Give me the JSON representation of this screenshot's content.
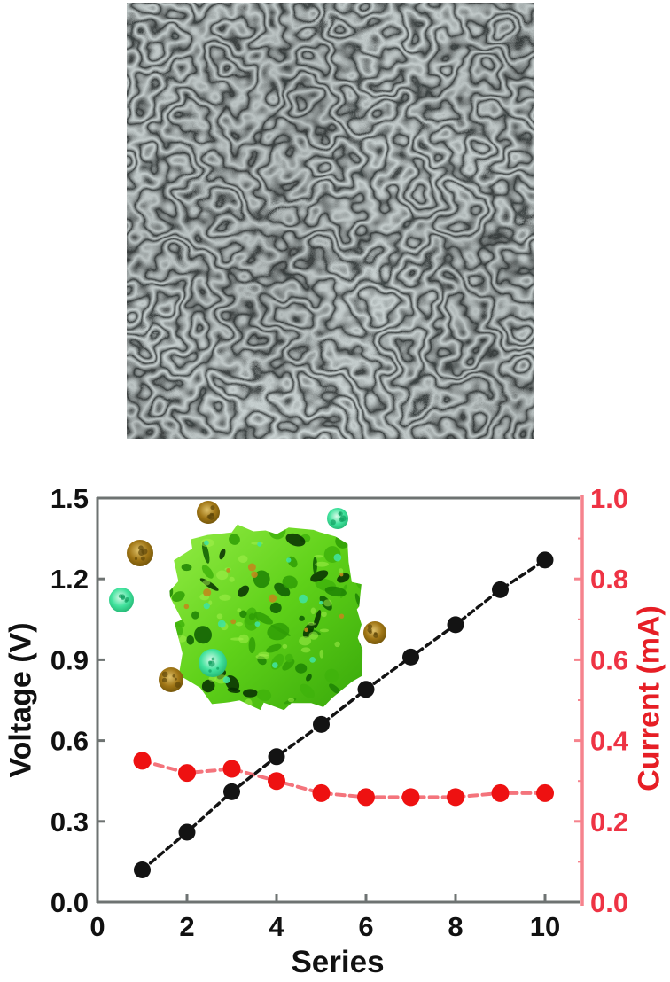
{
  "figure": {
    "background": "#ffffff",
    "panels": [
      "sem-micrograph",
      "series-performance-chart"
    ]
  },
  "sem_image": {
    "kind": "SEM micrograph of wrinkled labyrinth surface texture",
    "tone_light": "#b6c3c3",
    "tone_dark": "#0b1010"
  },
  "inset": {
    "kind": "porous green foam cube illustration with scattered microbe particles",
    "foam_green_light": "#94ec46",
    "foam_green": "#5fd119",
    "foam_green_dark": "#1d8204",
    "particle_teal": "#41e29d",
    "particle_brown": "#a07616"
  },
  "colors": {
    "axis_frame": "#6e7372",
    "left_tick_text": "#111111",
    "voltage_series": "#131313",
    "current_series": "#ee1111",
    "current_line": "#f4747c",
    "right_axis_line": "#f6838d",
    "right_tick_text": "#ee3344",
    "current_label": "#e61e25"
  },
  "chart_data": {
    "type": "line",
    "title": "",
    "xlabel": "Series",
    "ylabel_left": "Voltage (V)",
    "ylabel_right": "Current (mA)",
    "x": [
      1,
      2,
      3,
      4,
      5,
      6,
      7,
      8,
      9,
      10
    ],
    "series": [
      {
        "name": "Voltage (V)",
        "axis": "left",
        "marker": "circle",
        "values": [
          0.12,
          0.26,
          0.41,
          0.54,
          0.66,
          0.79,
          0.91,
          1.03,
          1.16,
          1.27
        ]
      },
      {
        "name": "Current (mA)",
        "axis": "right",
        "marker": "circle",
        "values": [
          0.35,
          0.32,
          0.33,
          0.3,
          0.27,
          0.26,
          0.26,
          0.26,
          0.27,
          0.27
        ]
      }
    ],
    "xlim": [
      0,
      10.73
    ],
    "ylim_left": [
      0,
      1.5
    ],
    "ylim_right": [
      0,
      1.0
    ],
    "x_tick_labels": [
      "0",
      "2",
      "4",
      "6",
      "8",
      "10"
    ],
    "left_tick_labels": [
      "0.0",
      "0.3",
      "0.6",
      "0.9",
      "1.2",
      "1.5"
    ],
    "right_tick_labels": [
      "0.0",
      "0.2",
      "0.4",
      "0.6",
      "0.8",
      "1.0"
    ],
    "grid": false,
    "legend": "none"
  }
}
